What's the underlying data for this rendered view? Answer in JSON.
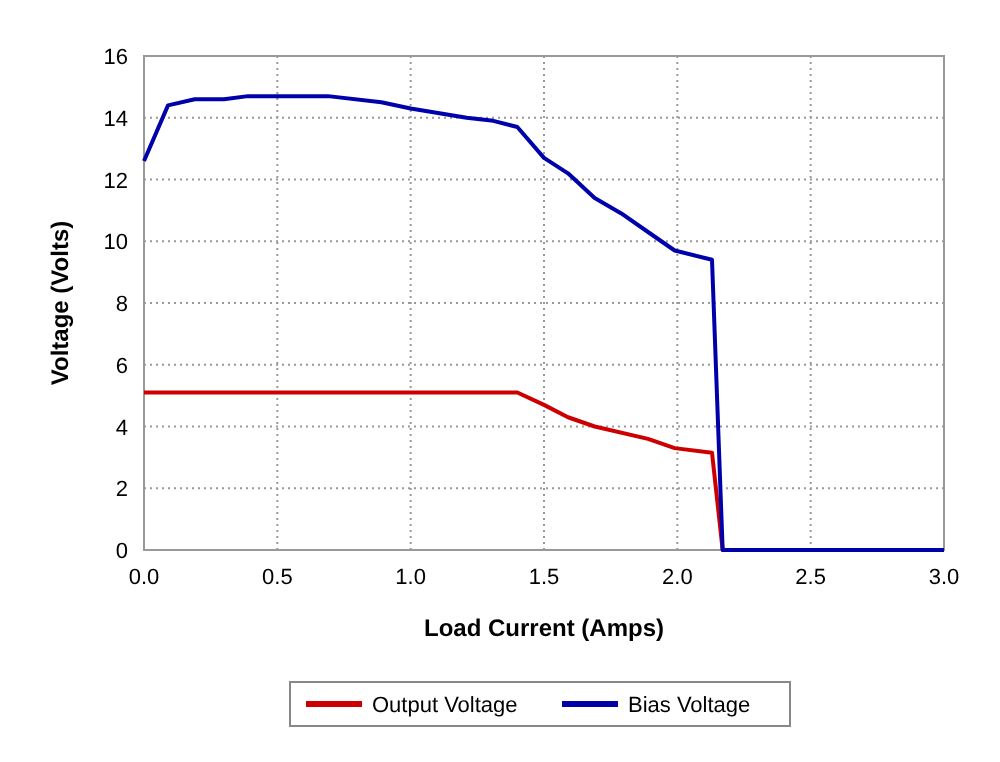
{
  "chart_data": {
    "type": "line",
    "xlabel": "Load Current (Amps)",
    "ylabel": "Voltage (Volts)",
    "xlim": [
      0,
      3
    ],
    "xticks": [
      {
        "value": 0,
        "label": "0.0"
      },
      {
        "value": 0.5,
        "label": "0.5"
      },
      {
        "value": 1,
        "label": "1.0"
      },
      {
        "value": 1.5,
        "label": "1.5"
      },
      {
        "value": 2,
        "label": "2.0"
      },
      {
        "value": 2.5,
        "label": "2.5"
      },
      {
        "value": 3,
        "label": "3.0"
      }
    ],
    "ylim": [
      0,
      16
    ],
    "yticks": [
      0,
      2,
      4,
      6,
      8,
      10,
      12,
      14,
      16
    ],
    "grid": true,
    "legend": "bottom",
    "marker": "none",
    "line_style": "solid",
    "series": [
      {
        "name": "Output Voltage",
        "color": "#cc0000",
        "x": [
          0,
          1.4,
          1.5,
          1.59,
          1.69,
          1.89,
          1.99,
          2.13,
          2.17,
          3
        ],
        "values": [
          5.1,
          5.1,
          4.7,
          4.3,
          4.0,
          3.6,
          3.3,
          3.15,
          0,
          0
        ]
      },
      {
        "name": "Bias Voltage",
        "color": "#0000aa",
        "x": [
          0,
          0.09,
          0.19,
          0.3,
          0.39,
          0.69,
          0.89,
          1.0,
          1.21,
          1.31,
          1.4,
          1.5,
          1.59,
          1.69,
          1.79,
          1.89,
          1.99,
          2.13,
          2.17,
          3
        ],
        "values": [
          12.6,
          14.4,
          14.6,
          14.6,
          14.7,
          14.7,
          14.5,
          14.3,
          14.0,
          13.9,
          13.7,
          12.7,
          12.2,
          11.4,
          10.9,
          10.3,
          9.7,
          9.4,
          0,
          0
        ]
      }
    ]
  }
}
